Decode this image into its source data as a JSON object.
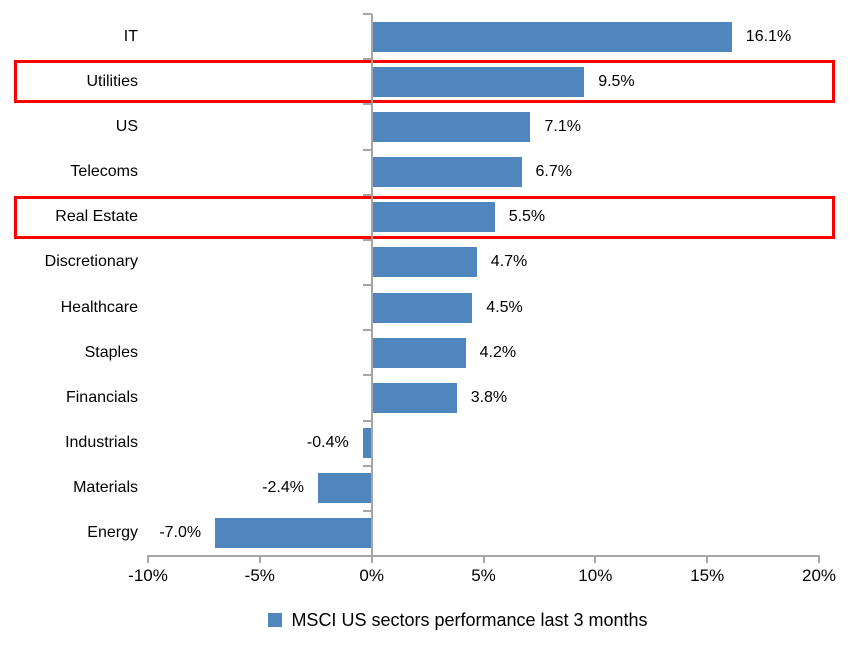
{
  "chart_data": {
    "type": "bar",
    "orientation": "horizontal",
    "title": "",
    "legend": "MSCI US sectors performance last 3 months",
    "legend_position": "bottom",
    "categories": [
      "IT",
      "Utilities",
      "US",
      "Telecoms",
      "Real Estate",
      "Discretionary",
      "Healthcare",
      "Staples",
      "Financials",
      "Industrials",
      "Materials",
      "Energy"
    ],
    "values": [
      16.1,
      9.5,
      7.1,
      6.7,
      5.5,
      4.7,
      4.5,
      4.2,
      3.8,
      -0.4,
      -2.4,
      -7.0
    ],
    "value_labels": [
      "16.1%",
      "9.5%",
      "7.1%",
      "6.7%",
      "5.5%",
      "4.7%",
      "4.5%",
      "4.2%",
      "3.8%",
      "-0.4%",
      "-2.4%",
      "-7.0%"
    ],
    "highlighted_categories": [
      "Utilities",
      "Real Estate"
    ],
    "x_tick_labels": [
      "-10%",
      "-5%",
      "0%",
      "5%",
      "10%",
      "15%",
      "20%"
    ],
    "x_tick_values": [
      -10,
      -5,
      0,
      5,
      10,
      15,
      20
    ],
    "xlim": [
      -10,
      20
    ],
    "grid": false,
    "colors": {
      "bar": "#4F86BD",
      "highlight_box": "#FF0000",
      "axis": "#A6A6A6",
      "text": "#000000",
      "background": "#FFFFFF"
    }
  }
}
